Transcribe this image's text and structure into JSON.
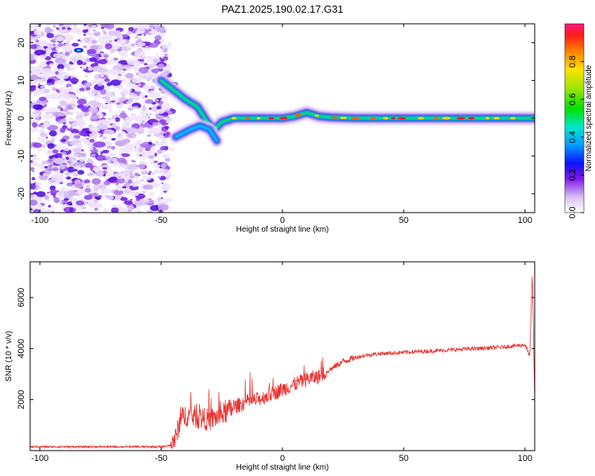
{
  "title": "PAZ1.2025.190.02.17.G31",
  "chart_data": [
    {
      "type": "heatmap",
      "xlabel": "Height of straight line (km)",
      "ylabel": "Frequency (Hz)",
      "xlim": [
        -104,
        104
      ],
      "ylim": [
        -25,
        25
      ],
      "xticks": [
        -100,
        -50,
        0,
        50,
        100
      ],
      "xtick_labels": [
        "-100",
        "-50",
        "0",
        "50",
        "100"
      ],
      "yticks": [
        -20,
        -10,
        0,
        10,
        20
      ],
      "ytick_labels": [
        "-20",
        "-10",
        "0",
        "10",
        "20"
      ],
      "colorbar": {
        "label": "Normalized spectral amplitude",
        "range": [
          0,
          1
        ],
        "ticks": [
          0,
          0.2,
          0.4,
          0.6,
          0.8
        ],
        "tick_labels": [
          "0.0",
          "0.2",
          "0.4",
          "0.6",
          "0.8"
        ]
      },
      "noise_region_x": [
        -104,
        -47
      ],
      "signal_track": {
        "x": [
          -50,
          -46,
          -40,
          -35,
          -31,
          -28,
          -25,
          -20,
          -10,
          0,
          5,
          10,
          15,
          20,
          30,
          50,
          80,
          104
        ],
        "frequency": [
          10,
          8,
          5,
          3,
          -1,
          -3,
          -1,
          0,
          0,
          0,
          0.5,
          1.5,
          0.5,
          0.2,
          0,
          0,
          0,
          0
        ]
      },
      "secondary_track": {
        "x": [
          -44,
          -38,
          -34,
          -30,
          -27
        ],
        "frequency": [
          -5,
          -3,
          -2,
          -3,
          -6
        ]
      }
    },
    {
      "type": "line",
      "xlabel": "Height of straight line (km)",
      "ylabel": "SNR (10 * v/v)",
      "xlim": [
        -104,
        104
      ],
      "ylim": [
        0,
        7400
      ],
      "xticks": [
        -100,
        -50,
        0,
        50,
        100
      ],
      "xtick_labels": [
        "-100",
        "-50",
        "0",
        "50",
        "100"
      ],
      "yticks": [
        2000,
        4000,
        6000
      ],
      "ytick_labels": [
        "2000",
        "4000",
        "6000"
      ],
      "line_color": "#e8322f",
      "series": [
        {
          "x": [
            -104,
            -100,
            -90,
            -80,
            -70,
            -60,
            -50,
            -46,
            -44,
            -42,
            -40,
            -35,
            -30,
            -25,
            -20,
            -15,
            -10,
            -5,
            0,
            5,
            10,
            15,
            20,
            25,
            30,
            35,
            40,
            50,
            60,
            70,
            80,
            90,
            95,
            100,
            102,
            103,
            104
          ],
          "values": [
            150,
            150,
            150,
            150,
            150,
            150,
            150,
            200,
            500,
            1200,
            1400,
            1300,
            1200,
            1400,
            1700,
            1900,
            2000,
            2200,
            2400,
            2600,
            2800,
            2900,
            3200,
            3500,
            3650,
            3750,
            3800,
            3850,
            3900,
            3950,
            4000,
            4050,
            4100,
            4150,
            3700,
            7000,
            2000
          ]
        }
      ]
    }
  ]
}
